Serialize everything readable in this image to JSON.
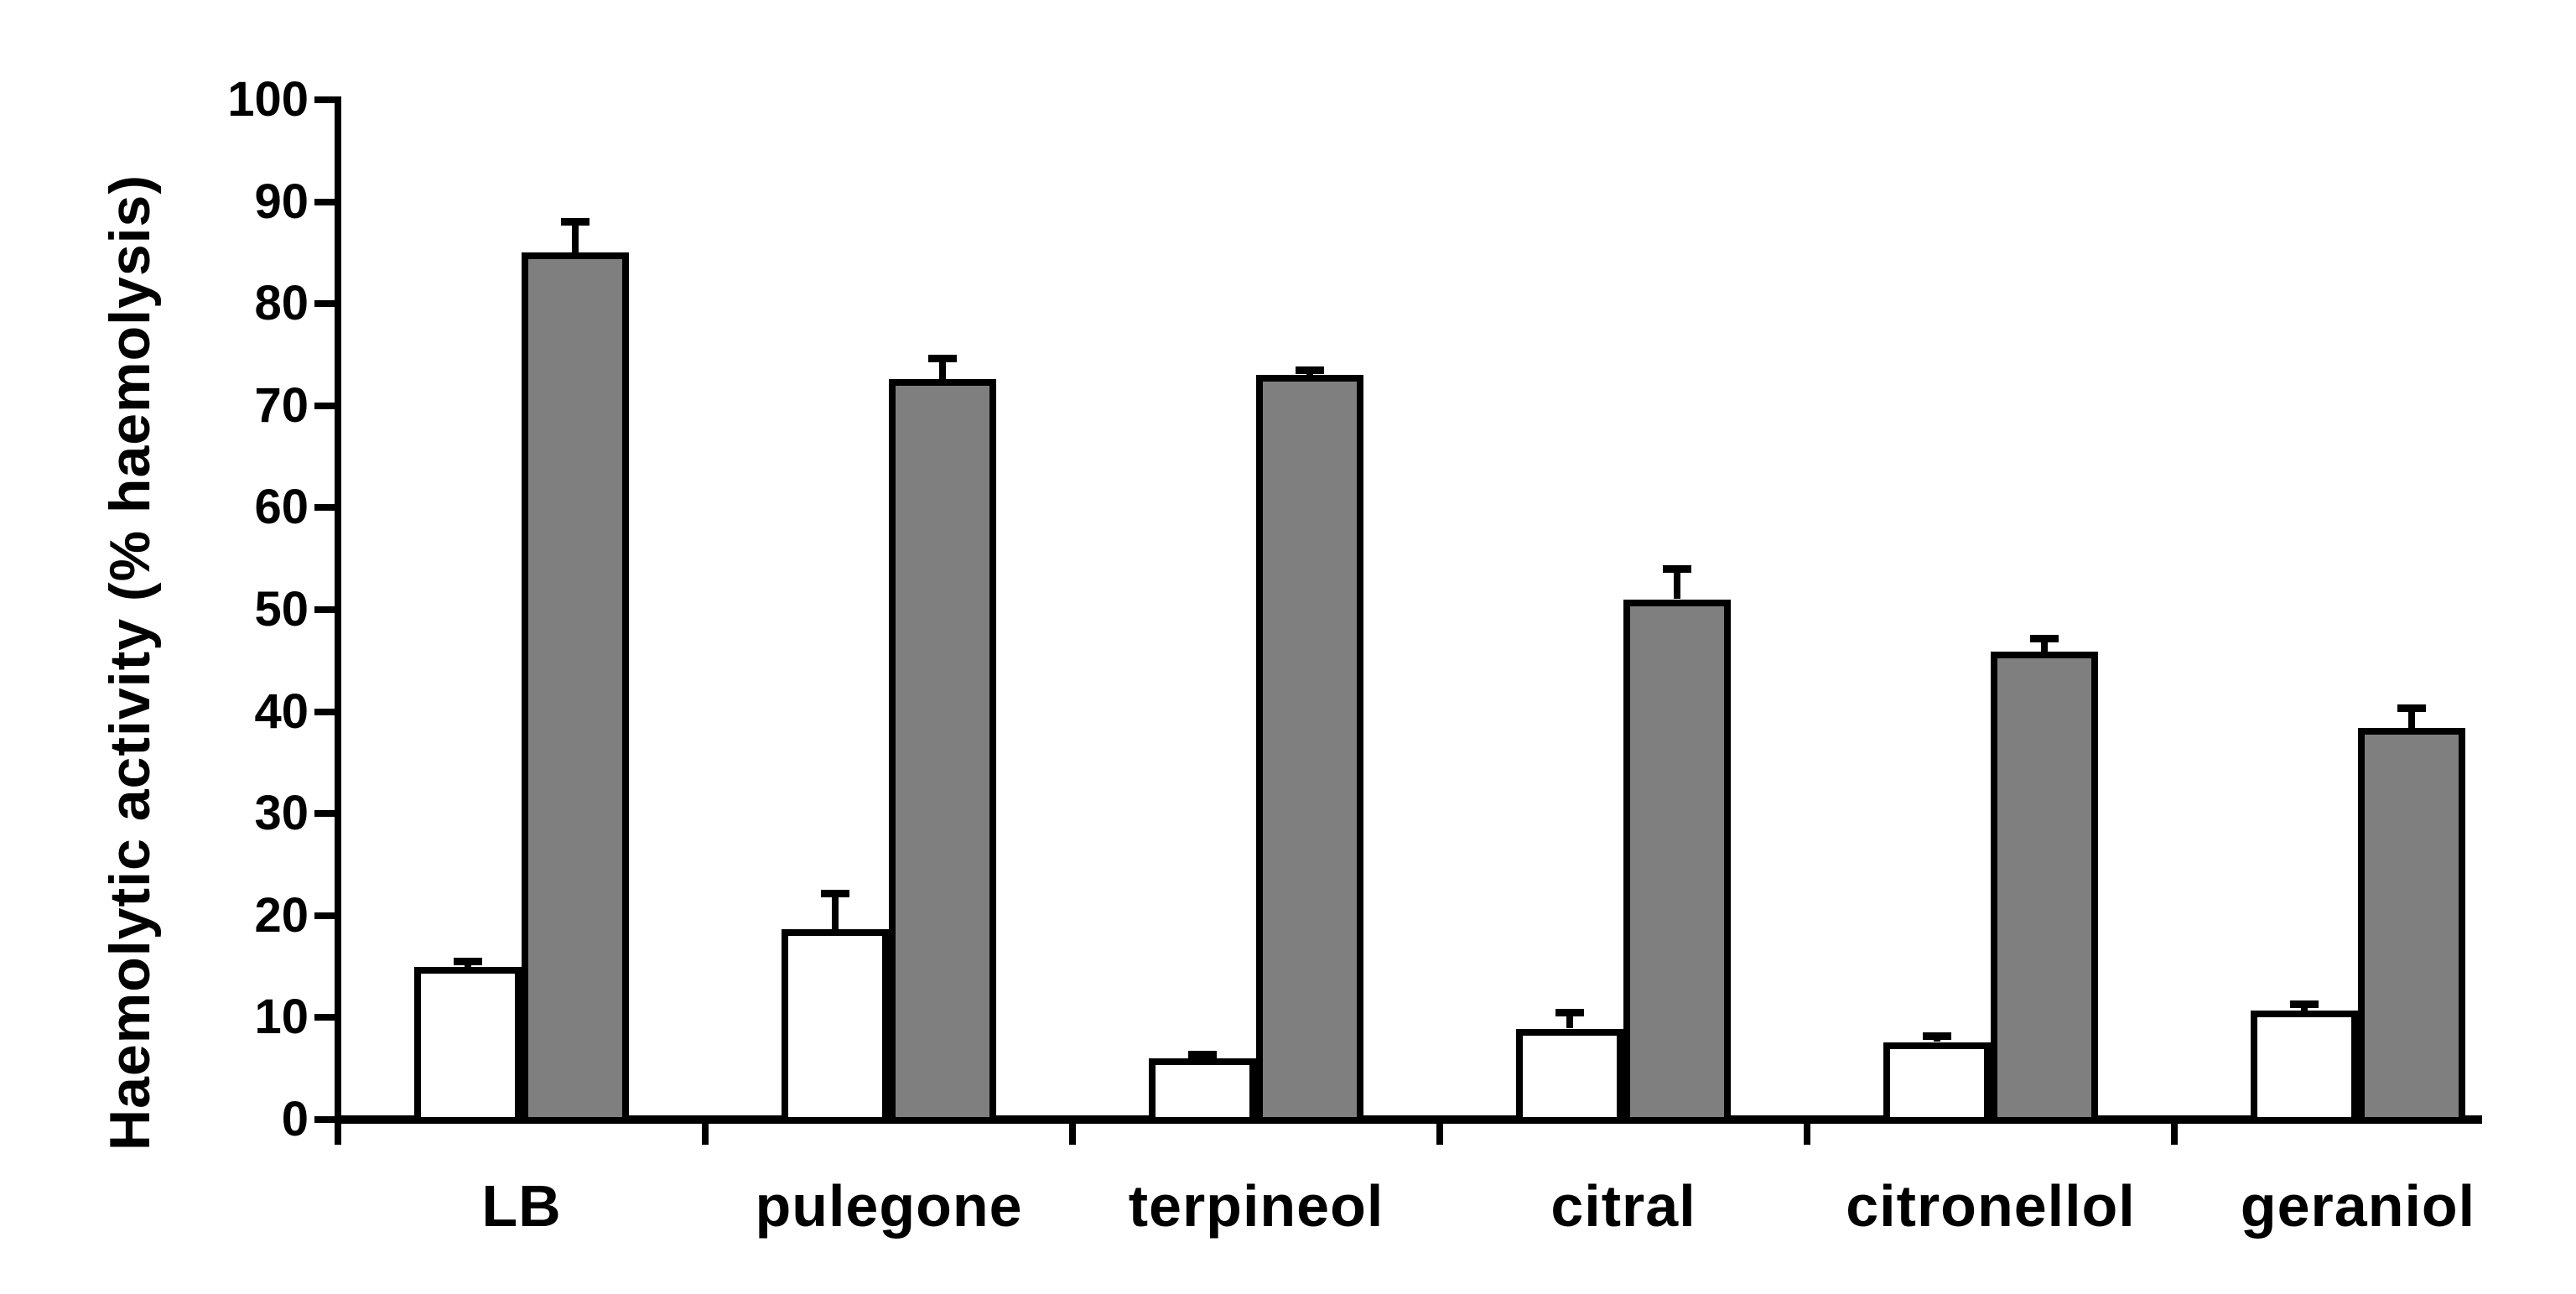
{
  "figure": {
    "background": "#ffffff"
  },
  "colors": {
    "stroke": "#000000",
    "bar_white_fill": "#ffffff",
    "bar_grey_fill": "#7f7f7f"
  },
  "chart_data": {
    "type": "bar",
    "title": "",
    "xlabel": "",
    "ylabel": "Haemolytic activity (% haemolysis)",
    "ylim": [
      0,
      100
    ],
    "ytick_step": 10,
    "yticks": [
      0,
      10,
      20,
      30,
      40,
      50,
      60,
      70,
      80,
      90,
      100
    ],
    "grid": false,
    "legend_position": "none",
    "error_bars": "upper only",
    "categories": [
      "LB",
      "pulegone",
      "terpineol",
      "citral",
      "citronellol",
      "geraniol"
    ],
    "series": [
      {
        "name": "white-bars",
        "fill": "#ffffff",
        "stroke": "#000000",
        "values": [
          15.0,
          18.7,
          6.0,
          8.9,
          7.6,
          10.7
        ],
        "errors_plus": [
          0.5,
          3.5,
          0.4,
          1.6,
          0.6,
          0.6
        ]
      },
      {
        "name": "grey-bars",
        "fill": "#7f7f7f",
        "stroke": "#000000",
        "values": [
          85.0,
          72.6,
          73.0,
          51.0,
          45.9,
          38.4
        ],
        "errors_plus": [
          3.0,
          2.0,
          0.5,
          3.0,
          1.3,
          1.9
        ]
      }
    ]
  }
}
